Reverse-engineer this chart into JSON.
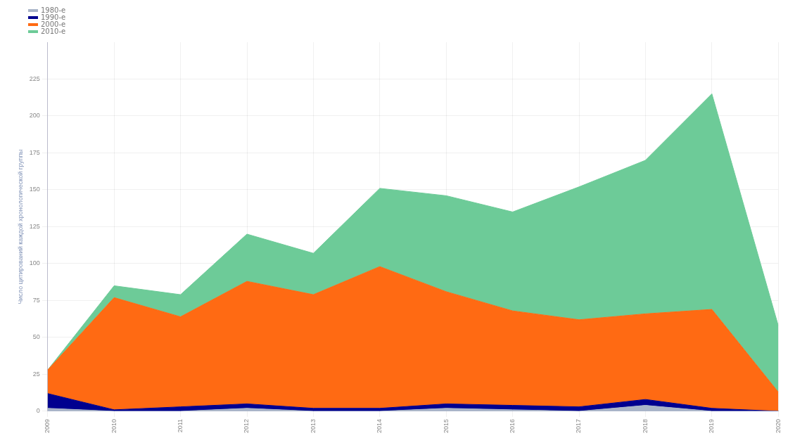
{
  "chart_data": {
    "type": "area",
    "stacked": true,
    "ylabel": "Число цитирований каждой хронологической группы",
    "x": [
      2009,
      2010,
      2011,
      2012,
      2013,
      2014,
      2015,
      2016,
      2017,
      2018,
      2019,
      2020
    ],
    "xlim": [
      2009,
      2020
    ],
    "xticks": [
      2009,
      2010,
      2011,
      2012,
      2013,
      2014,
      2015,
      2016,
      2017,
      2018,
      2019,
      2020
    ],
    "ylim": [
      0,
      250
    ],
    "yticks": [
      0,
      25,
      50,
      75,
      100,
      125,
      150,
      175,
      200,
      225
    ],
    "series": [
      {
        "name": "1980-е",
        "color": "#a9b4c8",
        "values": [
          2,
          0,
          0,
          2,
          0,
          0,
          2,
          1,
          0,
          4,
          0,
          0
        ]
      },
      {
        "name": "1990-е",
        "color": "#00008f",
        "values": [
          10,
          1,
          3,
          3,
          2,
          2,
          3,
          3,
          3,
          4,
          2,
          0
        ]
      },
      {
        "name": "2000-е",
        "color": "#ff6a13",
        "values": [
          16,
          76,
          61,
          83,
          77,
          96,
          76,
          64,
          59,
          58,
          67,
          13
        ]
      },
      {
        "name": "2010-е",
        "color": "#6dcb98",
        "values": [
          0,
          8,
          15,
          32,
          28,
          53,
          65,
          67,
          90,
          104,
          146,
          45
        ]
      }
    ],
    "grid": true,
    "legend": "top left",
    "marker": "none"
  }
}
